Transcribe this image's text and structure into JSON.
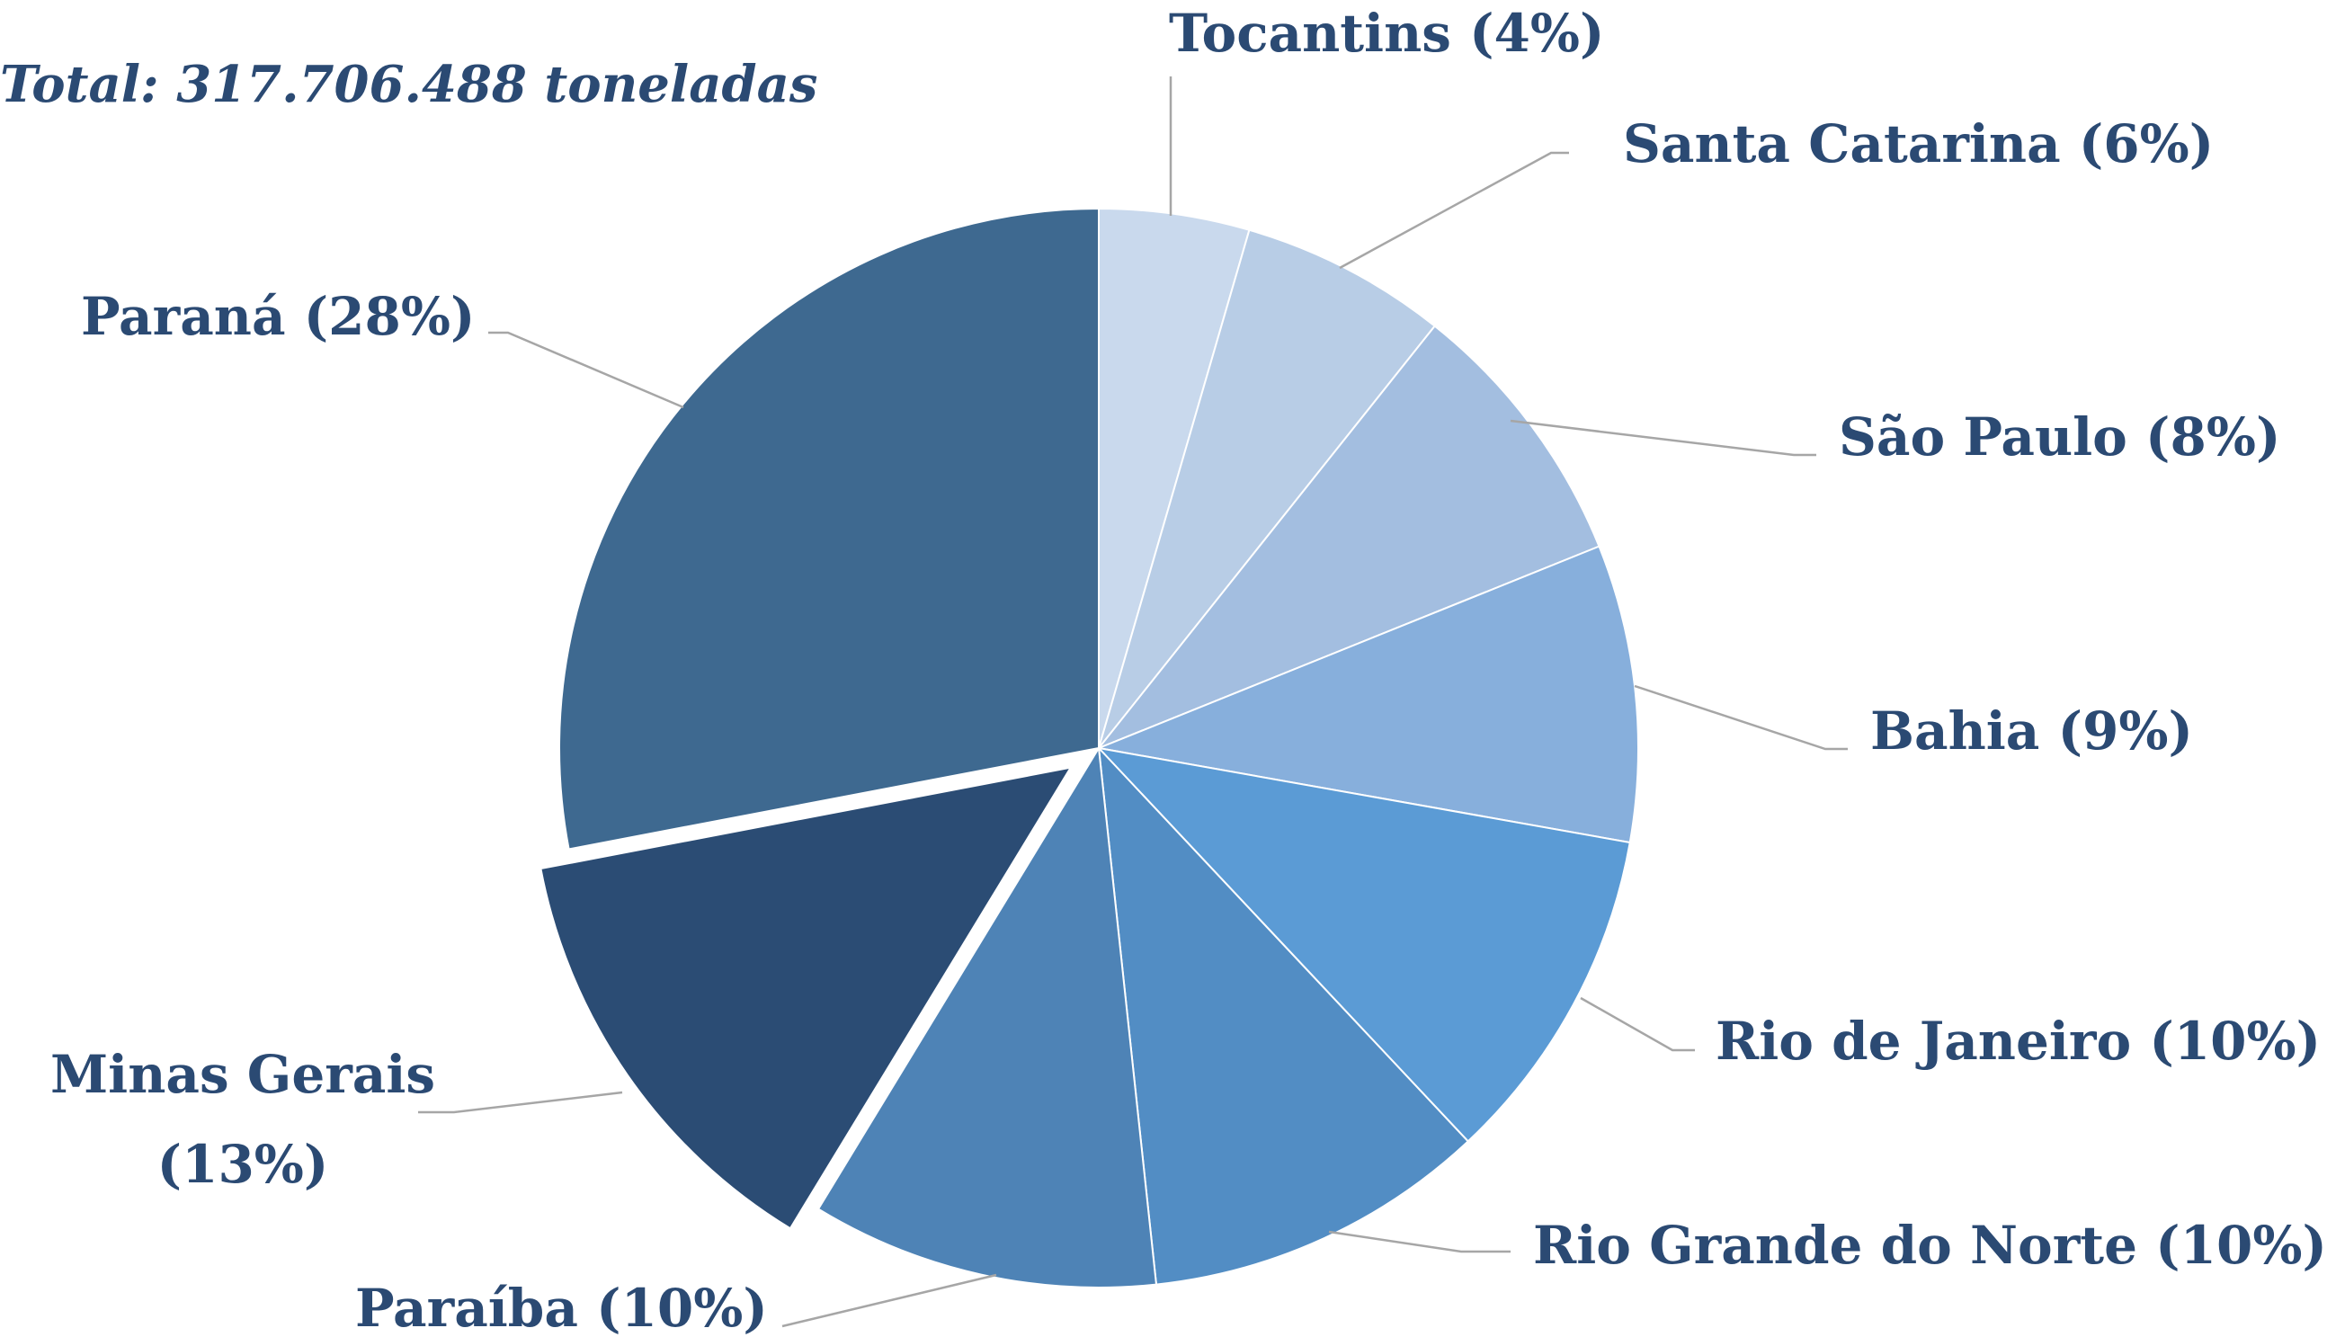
{
  "chart_data": {
    "type": "pie",
    "total_label": "Total: 317.706.488 toneladas",
    "exploded_slice": "Minas Gerais",
    "slices": [
      {
        "name": "Tocantins",
        "label": "Tocantins (4%)",
        "value": 4.5,
        "color": "#c9d9ed"
      },
      {
        "name": "Santa Catarina",
        "label": "Santa Catarina (6%)",
        "value": 6.2,
        "color": "#b8cde6"
      },
      {
        "name": "São Paulo",
        "label": "São Paulo (8%)",
        "value": 8.2,
        "color": "#a3bee0"
      },
      {
        "name": "Bahia",
        "label": "Bahia (9%)",
        "value": 8.9,
        "color": "#87afdc"
      },
      {
        "name": "Rio de Janeiro",
        "label": "Rio de Janeiro (10%)",
        "value": 10.2,
        "color": "#5b9bd5"
      },
      {
        "name": "Rio Grande do Norte",
        "label": "Rio Grande do Norte (10%)",
        "value": 10.3,
        "color": "#528dc4"
      },
      {
        "name": "Paraíba",
        "label": "Paraíba (10%)",
        "value": 10.4,
        "color": "#4e83b6"
      },
      {
        "name": "Minas Gerais",
        "label_lines": [
          "Minas Gerais",
          "(13%)"
        ],
        "value": 13.3,
        "color": "#2b4c74"
      },
      {
        "name": "Paraná",
        "label": "Paraná (28%)",
        "value": 28.0,
        "color": "#3e6990"
      }
    ]
  }
}
